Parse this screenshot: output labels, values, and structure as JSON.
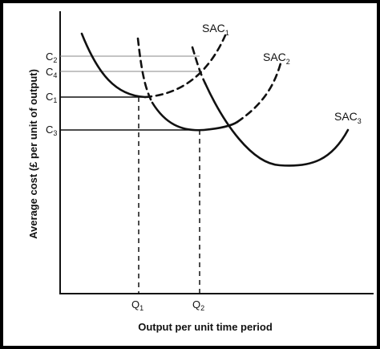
{
  "diagram": {
    "x_axis_title": "Output per unit time period",
    "y_axis_title": "Average cost (£ per unit of output)",
    "curves": [
      {
        "id": "SAC1",
        "base": "SAC",
        "sub": "1",
        "style": "solid"
      },
      {
        "id": "SAC2",
        "base": "SAC",
        "sub": "2",
        "style": "mixed"
      },
      {
        "id": "SAC3",
        "base": "SAC",
        "sub": "3",
        "style": "solid"
      }
    ],
    "y_levels": [
      {
        "id": "C2",
        "base": "C",
        "sub": "2"
      },
      {
        "id": "C4",
        "base": "C",
        "sub": "4"
      },
      {
        "id": "C1",
        "base": "C",
        "sub": "1"
      },
      {
        "id": "C3",
        "base": "C",
        "sub": "3"
      }
    ],
    "x_levels": [
      {
        "id": "Q1",
        "base": "Q",
        "sub": "1"
      },
      {
        "id": "Q2",
        "base": "Q",
        "sub": "2"
      }
    ],
    "colors": {
      "ink": "#111111",
      "guide": "#888888",
      "background": "#ffffff"
    }
  }
}
